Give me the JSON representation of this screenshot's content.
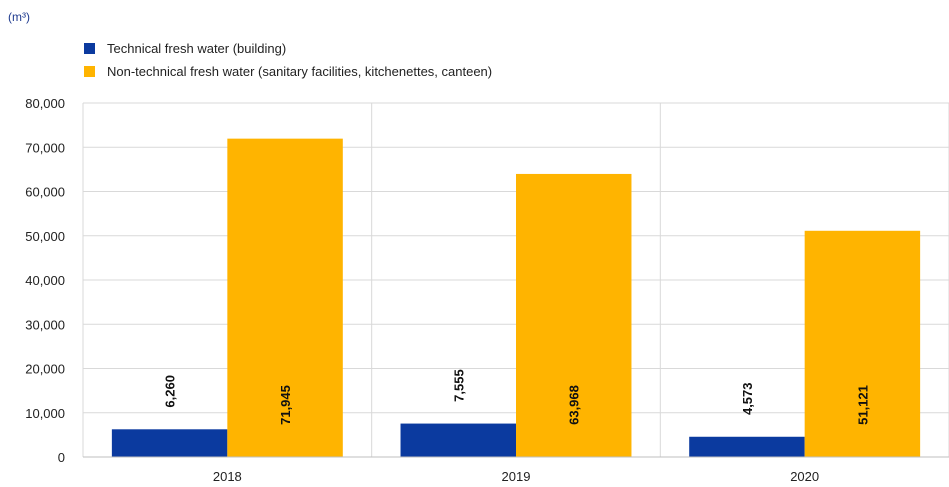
{
  "unit_label": "(m³)",
  "colors": {
    "technical": "#0b3a9f",
    "nontechnical": "#ffb400",
    "grid": "#d9d9d9",
    "axis": "#bfbfbf"
  },
  "chart_data": {
    "type": "bar",
    "categories": [
      "2018",
      "2019",
      "2020"
    ],
    "series": [
      {
        "name": "Technical fresh water (building)",
        "values": [
          6260,
          7555,
          4573
        ],
        "labels": [
          "6,260",
          "7,555",
          "4,573"
        ]
      },
      {
        "name": "Non-technical fresh water (sanitary facilities, kitchenettes, canteen)",
        "values": [
          71945,
          63968,
          51121
        ],
        "labels": [
          "71,945",
          "63,968",
          "51,121"
        ]
      }
    ],
    "ylim": [
      0,
      80000
    ],
    "yticks": [
      0,
      10000,
      20000,
      30000,
      40000,
      50000,
      60000,
      70000,
      80000
    ],
    "ytick_labels": [
      "0",
      "10,000",
      "20,000",
      "30,000",
      "40,000",
      "50,000",
      "60,000",
      "70,000",
      "80,000"
    ],
    "grid": true,
    "legend_position": "top-left"
  }
}
